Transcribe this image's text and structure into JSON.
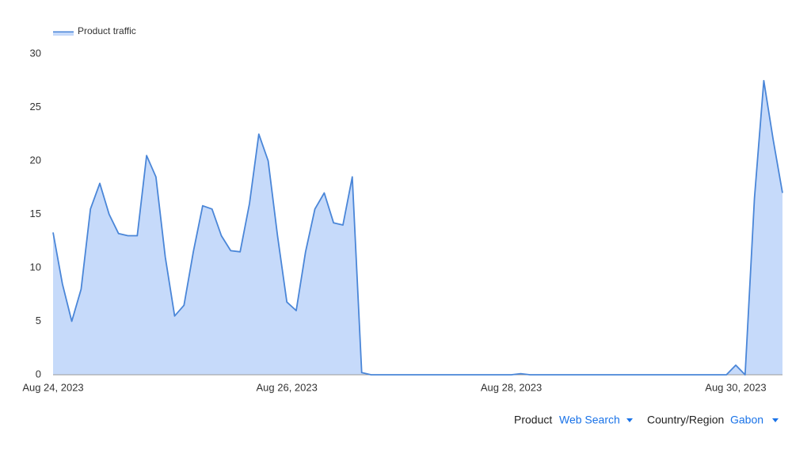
{
  "chart_data": {
    "type": "area",
    "categories": [
      "Aug 24, 2023",
      null,
      null,
      null,
      null,
      null,
      null,
      null,
      null,
      null,
      null,
      null,
      null,
      null,
      null,
      null,
      null,
      null,
      null,
      null,
      null,
      null,
      null,
      null,
      null,
      "Aug 26, 2023",
      null,
      null,
      null,
      null,
      null,
      null,
      null,
      null,
      null,
      null,
      null,
      null,
      null,
      null,
      null,
      null,
      null,
      null,
      null,
      null,
      null,
      null,
      null,
      "Aug 28, 2023",
      null,
      null,
      null,
      null,
      null,
      null,
      null,
      null,
      null,
      null,
      null,
      null,
      null,
      null,
      null,
      null,
      null,
      null,
      null,
      null,
      null,
      null,
      null,
      "Aug 30, 2023",
      null,
      null,
      null,
      null,
      null
    ],
    "series": [
      {
        "name": "Product traffic",
        "color": "#4a86d8",
        "fill": "#c6dafa",
        "values": [
          13.3,
          8.5,
          5.0,
          8,
          15.5,
          17.9,
          15,
          13.2,
          13.0,
          13,
          20.5,
          18.5,
          11,
          5.5,
          6.5,
          11.5,
          15.8,
          15.5,
          13,
          11.6,
          11.5,
          16,
          22.5,
          20,
          13,
          6.8,
          6,
          11.5,
          15.5,
          17,
          14.2,
          14,
          18.5,
          0.2,
          0,
          0,
          0,
          0,
          0,
          0,
          0,
          0,
          0,
          0,
          0,
          0,
          0,
          0,
          0,
          0,
          0.1,
          0,
          0,
          0,
          0,
          0,
          0,
          0,
          0,
          0,
          0,
          0,
          0,
          0,
          0,
          0,
          0,
          0,
          0,
          0,
          0,
          0,
          0,
          0.9,
          0,
          16.5,
          27.5,
          22,
          17
        ]
      }
    ],
    "ylim": [
      0,
      30
    ],
    "yticks": [
      0,
      5,
      10,
      15,
      20,
      25,
      30
    ],
    "legend": "top-left",
    "filters": [
      {
        "label": "Product",
        "value": "Web Search"
      },
      {
        "label": "Country/Region",
        "value": "Gabon"
      }
    ]
  }
}
